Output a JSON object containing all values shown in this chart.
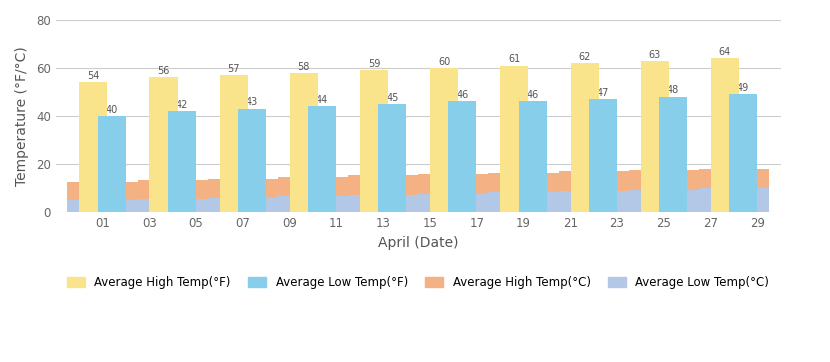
{
  "dates": [
    "01",
    "03",
    "05",
    "07",
    "09",
    "11",
    "13",
    "15",
    "17",
    "19",
    "21",
    "23",
    "25",
    "27",
    "29"
  ],
  "avg_high_f": [
    54,
    56,
    57,
    58,
    59,
    60,
    61,
    62,
    63,
    64
  ],
  "avg_low_f": [
    40,
    42,
    43,
    44,
    45,
    46,
    46,
    47,
    48,
    49
  ],
  "avg_high_c": [
    12.3,
    13.1,
    13.8,
    14.5,
    15.1,
    15.7,
    16.2,
    16.8,
    17.3,
    17.7
  ],
  "avg_low_c": [
    4.7,
    5.3,
    5.9,
    6.7,
    7.1,
    7.5,
    8.0,
    8.6,
    9.1,
    9.7
  ],
  "data_positions": [
    1,
    4,
    7,
    10,
    13,
    16,
    19,
    22,
    25,
    28
  ],
  "color_high_f": "#FAE48B",
  "color_low_f": "#87CEEB",
  "color_high_c": "#F4B183",
  "color_low_c": "#B3C7E6",
  "xlabel": "April (Date)",
  "ylabel": "Temperature (°F/°C)",
  "ylim": [
    0,
    80
  ],
  "yticks": [
    0,
    20,
    40,
    60,
    80
  ],
  "xtick_labels": [
    "01",
    "03",
    "05",
    "07",
    "09",
    "11",
    "13",
    "15",
    "17",
    "19",
    "21",
    "23",
    "25",
    "27",
    "29"
  ],
  "xtick_positions": [
    1,
    3,
    5,
    7,
    9,
    11,
    13,
    15,
    17,
    19,
    21,
    23,
    25,
    27,
    29
  ],
  "bar_width": 1.2,
  "legend_labels": [
    "Average High Temp(°F)",
    "Average Low Temp(°F)",
    "Average High Temp(°C)",
    "Average Low Temp(°C)"
  ]
}
